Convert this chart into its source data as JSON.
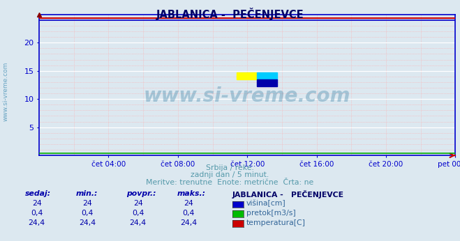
{
  "title": "JABLANICA -  PEČENJEVCE",
  "bg_color": "#dce8f0",
  "plot_bg_color": "#dce8f0",
  "axis_color": "#0000cc",
  "title_color": "#000066",
  "subtitle_lines": [
    "Srbija / reke.",
    "zadnji dan / 5 minut.",
    "Meritve: trenutne  Enote: metrične  Črta: ne"
  ],
  "subtitle_color": "#5599aa",
  "watermark_text": "www.si-vreme.com",
  "ylim": [
    0,
    25
  ],
  "xtick_labels": [
    "čet 04:00",
    "čet 08:00",
    "čet 12:00",
    "čet 16:00",
    "čet 20:00",
    "pet 00:00"
  ],
  "xtick_positions": [
    0.1667,
    0.3333,
    0.5,
    0.6667,
    0.8333,
    1.0
  ],
  "line_visina_color": "#0000cc",
  "line_pretok_color": "#00aa00",
  "line_temp_color": "#cc0000",
  "visina_value": 24,
  "pretok_value": 0.4,
  "temp_value": 24.4,
  "legend_colors": [
    "#0000cc",
    "#00bb00",
    "#cc0000"
  ],
  "legend_labels": [
    "višina[cm]",
    "pretok[m3/s]",
    "temperatura[C]"
  ],
  "rows": [
    [
      "24",
      "24",
      "24",
      "24"
    ],
    [
      "0,4",
      "0,4",
      "0,4",
      "0,4"
    ],
    [
      "24,4",
      "24,4",
      "24,4",
      "24,4"
    ]
  ],
  "headers": [
    "sedaj:",
    "min.:",
    "povpr.:",
    "maks.:"
  ],
  "table_station": "JABLANICA -   PEČENJEVCE"
}
